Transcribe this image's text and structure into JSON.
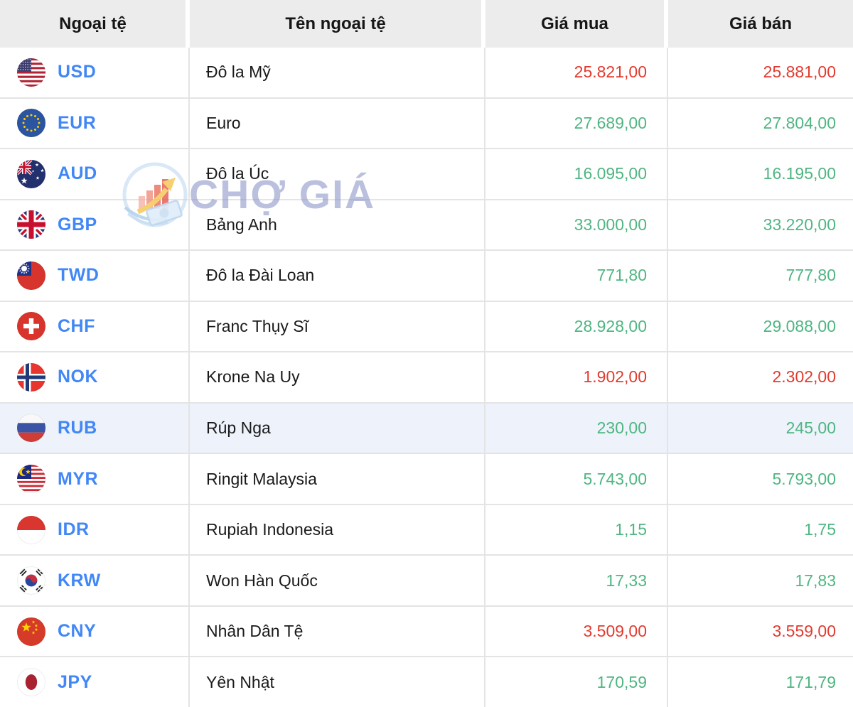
{
  "table": {
    "columns": [
      {
        "label": "Ngoại tệ"
      },
      {
        "label": "Tên ngoại tệ"
      },
      {
        "label": "Giá mua"
      },
      {
        "label": "Giá bán"
      }
    ],
    "rows": [
      {
        "code": "USD",
        "flag_icon": "us-flag-icon",
        "name": "Đô la Mỹ",
        "buy": "25.821,00",
        "sell": "25.881,00",
        "value_color": "red",
        "highlighted": false
      },
      {
        "code": "EUR",
        "flag_icon": "eu-flag-icon",
        "name": "Euro",
        "buy": "27.689,00",
        "sell": "27.804,00",
        "value_color": "green",
        "highlighted": false
      },
      {
        "code": "AUD",
        "flag_icon": "au-flag-icon",
        "name": "Đô la Úc",
        "buy": "16.095,00",
        "sell": "16.195,00",
        "value_color": "green",
        "highlighted": false
      },
      {
        "code": "GBP",
        "flag_icon": "gb-flag-icon",
        "name": "Bảng Anh",
        "buy": "33.000,00",
        "sell": "33.220,00",
        "value_color": "green",
        "highlighted": false
      },
      {
        "code": "TWD",
        "flag_icon": "tw-flag-icon",
        "name": "Đô la Đài Loan",
        "buy": "771,80",
        "sell": "777,80",
        "value_color": "green",
        "highlighted": false
      },
      {
        "code": "CHF",
        "flag_icon": "ch-flag-icon",
        "name": "Franc Thụy Sĩ",
        "buy": "28.928,00",
        "sell": "29.088,00",
        "value_color": "green",
        "highlighted": false
      },
      {
        "code": "NOK",
        "flag_icon": "no-flag-icon",
        "name": "Krone Na Uy",
        "buy": "1.902,00",
        "sell": "2.302,00",
        "value_color": "red",
        "highlighted": false
      },
      {
        "code": "RUB",
        "flag_icon": "ru-flag-icon",
        "name": "Rúp Nga",
        "buy": "230,00",
        "sell": "245,00",
        "value_color": "green",
        "highlighted": true
      },
      {
        "code": "MYR",
        "flag_icon": "my-flag-icon",
        "name": "Ringit Malaysia",
        "buy": "5.743,00",
        "sell": "5.793,00",
        "value_color": "green",
        "highlighted": false
      },
      {
        "code": "IDR",
        "flag_icon": "id-flag-icon",
        "name": "Rupiah Indonesia",
        "buy": "1,15",
        "sell": "1,75",
        "value_color": "green",
        "highlighted": false
      },
      {
        "code": "KRW",
        "flag_icon": "kr-flag-icon",
        "name": "Won Hàn Quốc",
        "buy": "17,33",
        "sell": "17,83",
        "value_color": "green",
        "highlighted": false
      },
      {
        "code": "CNY",
        "flag_icon": "cn-flag-icon",
        "name": "Nhân Dân Tệ",
        "buy": "3.509,00",
        "sell": "3.559,00",
        "value_color": "red",
        "highlighted": false
      },
      {
        "code": "JPY",
        "flag_icon": "jp-flag-icon",
        "name": "Yên Nhật",
        "buy": "170,59",
        "sell": "171,79",
        "value_color": "green",
        "highlighted": false
      }
    ]
  },
  "watermark": {
    "text": "CHỢ GIÁ",
    "logo": "chogia-logo"
  },
  "colors": {
    "red": "#e23a2e",
    "green": "#4fb582",
    "code_blue": "#4187f6",
    "header_bg": "#ececec",
    "row_highlight": "#edf2fb",
    "border": "#e4e4e4"
  }
}
